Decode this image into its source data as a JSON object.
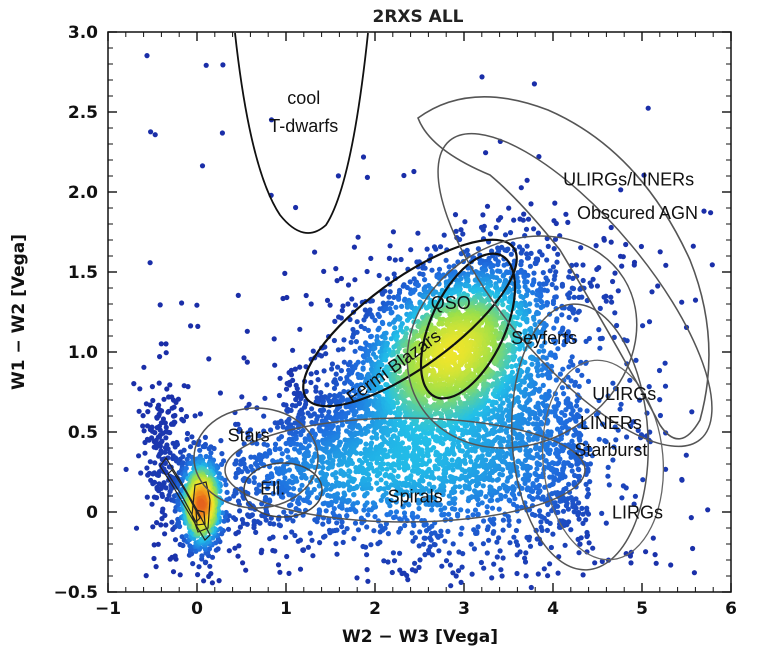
{
  "chart_data": {
    "type": "scatter",
    "title": "2RXS ALL",
    "xlabel": "W2 − W3 [Vega]",
    "ylabel": "W1 − W2 [Vega]",
    "xlim": [
      -1,
      6
    ],
    "ylim": [
      -0.5,
      3.0
    ],
    "xticks": [
      "−1",
      "0",
      "1",
      "2",
      "3",
      "4",
      "5",
      "6"
    ],
    "yticks": [
      "−0.5",
      "0",
      "0.5",
      "1.0",
      "1.5",
      "2.0",
      "2.5",
      "3.0"
    ],
    "colormap": [
      "#1a2ea8",
      "#1f6fe0",
      "#22c0e8",
      "#9be04a",
      "#f5e629",
      "#f08a1c",
      "#d0141e"
    ],
    "regions": [
      {
        "label": "cool",
        "label2": "T-dwarfs",
        "x": 1.2,
        "y": 2.55
      },
      {
        "label": "ULIRGs/LINERs",
        "x": 4.85,
        "y": 2.04
      },
      {
        "label": "Obscured AGN",
        "x": 4.95,
        "y": 1.83
      },
      {
        "label": "QSO",
        "x": 2.85,
        "y": 1.27
      },
      {
        "label": "Seyferts",
        "x": 3.9,
        "y": 1.05
      },
      {
        "label": "Fermi Blazars",
        "x": 2.25,
        "y": 0.88
      },
      {
        "label": "ULIRGs",
        "x": 4.8,
        "y": 0.7
      },
      {
        "label": "LINERs",
        "x": 4.65,
        "y": 0.52
      },
      {
        "label": "Starburst",
        "x": 4.65,
        "y": 0.35
      },
      {
        "label": "Stars",
        "x": 0.58,
        "y": 0.44
      },
      {
        "label": "Ell.",
        "x": 0.85,
        "y": 0.11
      },
      {
        "label": "Spirals",
        "x": 2.45,
        "y": 0.06
      },
      {
        "label": "LIRGs",
        "x": 4.95,
        "y": -0.04
      }
    ]
  }
}
